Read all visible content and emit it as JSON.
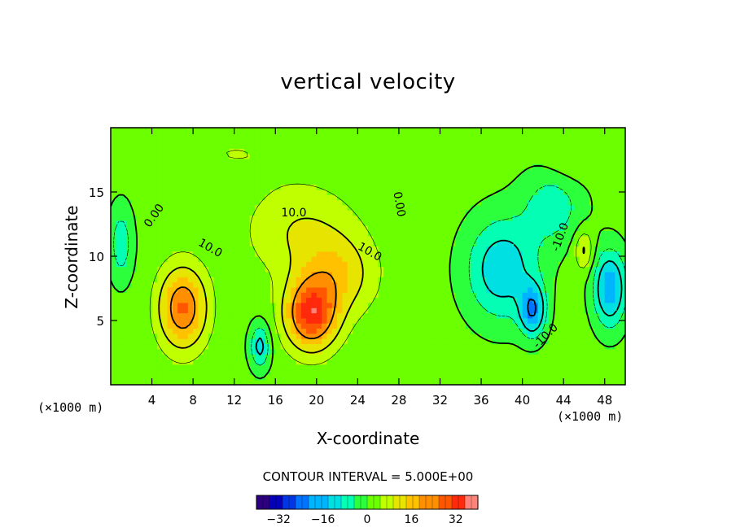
{
  "chart_data": {
    "type": "heatmap",
    "title": "vertical velocity",
    "xlabel": "X-coordinate",
    "ylabel": "Z-coordinate",
    "x_unit_label": "(×1000 m)",
    "x_unit_label_right": "(×1000 m)",
    "xlim": [
      0,
      50
    ],
    "ylim": [
      0,
      20
    ],
    "x_ticks": [
      4,
      8,
      12,
      16,
      20,
      24,
      28,
      32,
      36,
      40,
      44,
      48
    ],
    "y_ticks": [
      5,
      10,
      15
    ],
    "contour_interval_text": "CONTOUR INTERVAL = 5.000E+00",
    "contour_interval": 5,
    "colorbar": {
      "range": [
        -40,
        40
      ],
      "ticks": [
        -32,
        -16,
        0,
        16,
        32
      ],
      "colors": [
        "#400060",
        "#0000c0",
        "#0060ff",
        "#00c8ff",
        "#00ffc0",
        "#40ff00",
        "#c8ff00",
        "#ffd000",
        "#ff8000",
        "#ff2000",
        "#ffb0b0"
      ]
    },
    "contour_labels": [
      {
        "text": "0.00",
        "x": 4.5,
        "y": 13.0,
        "angle": -55
      },
      {
        "text": "10.0",
        "x": 9.5,
        "y": 10.4,
        "angle": 30
      },
      {
        "text": "10.0",
        "x": 17.8,
        "y": 13.1,
        "angle": 0
      },
      {
        "text": "10.0",
        "x": 25.0,
        "y": 10.1,
        "angle": 30
      },
      {
        "text": "0.00",
        "x": 27.7,
        "y": 14.0,
        "angle": 80
      },
      {
        "text": "-10.0",
        "x": 44.0,
        "y": 11.4,
        "angle": -70
      },
      {
        "text": "-10.0",
        "x": 42.5,
        "y": 3.6,
        "angle": -45
      }
    ],
    "features": [
      {
        "x": 7.0,
        "z": 6.0,
        "w": 24,
        "sx": 2.2,
        "sz": 3.0
      },
      {
        "x": 19.5,
        "z": 5.5,
        "w": 30,
        "sx": 2.4,
        "sz": 2.6
      },
      {
        "x": 22.0,
        "z": 8.5,
        "w": 12,
        "sx": 3.5,
        "sz": 3.0
      },
      {
        "x": 18.5,
        "z": 12.0,
        "w": 8,
        "sx": 5.0,
        "sz": 3.5
      },
      {
        "x": 14.5,
        "z": 3.0,
        "w": -14,
        "sx": 1.0,
        "sz": 1.8
      },
      {
        "x": 1.0,
        "z": 11.0,
        "w": -10,
        "sx": 1.2,
        "sz": 3.0
      },
      {
        "x": 38.0,
        "z": 9.0,
        "w": -16,
        "sx": 3.5,
        "sz": 4.0
      },
      {
        "x": 41.0,
        "z": 5.8,
        "w": -20,
        "sx": 1.2,
        "sz": 2.0
      },
      {
        "x": 48.5,
        "z": 7.5,
        "w": -20,
        "sx": 1.6,
        "sz": 3.0
      },
      {
        "x": 46.0,
        "z": 10.5,
        "w": 10,
        "sx": 0.9,
        "sz": 1.6
      },
      {
        "x": 43.0,
        "z": 14.0,
        "w": -10,
        "sx": 3.0,
        "sz": 3.0
      },
      {
        "x": 12.0,
        "z": 18.0,
        "w": 3,
        "sx": 6.0,
        "sz": 2.0
      },
      {
        "x": 44.5,
        "z": 17.5,
        "w": 4,
        "sx": 2.5,
        "sz": 2.0
      }
    ]
  }
}
